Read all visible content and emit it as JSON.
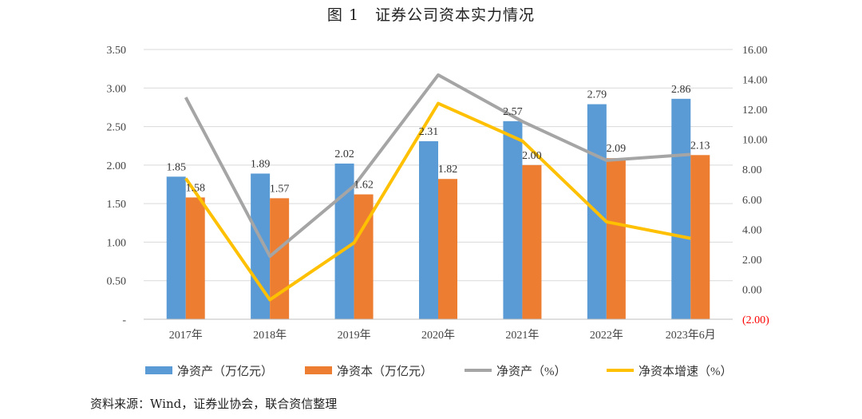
{
  "title": "图 1　证券公司资本实力情况",
  "source": "资料来源：Wind，证券业协会，联合资信整理",
  "colors": {
    "net_assets_bar": "#5B9BD5",
    "net_capital_bar": "#ED7D31",
    "net_assets_growth_line": "#A5A5A5",
    "net_capital_growth_line": "#FFC000",
    "negative_tick": "#FF0000"
  },
  "chart_data": {
    "type": "bar",
    "categories": [
      "2017年",
      "2018年",
      "2019年",
      "2020年",
      "2021年",
      "2022年",
      "2023年6月"
    ],
    "y_left": {
      "ylim": [
        0,
        3.5
      ],
      "ticks": [
        "-",
        "0.50",
        "1.00",
        "1.50",
        "2.00",
        "2.50",
        "3.00",
        "3.50"
      ]
    },
    "y_right": {
      "ylim": [
        -2,
        16
      ],
      "ticks": [
        "(2.00)",
        "0.00",
        "2.00",
        "4.00",
        "6.00",
        "8.00",
        "10.00",
        "12.00",
        "14.00",
        "16.00"
      ]
    },
    "series": [
      {
        "name": "净资产（万亿元）",
        "type": "bar",
        "axis": "left",
        "values": [
          1.85,
          1.89,
          2.02,
          2.31,
          2.57,
          2.79,
          2.86
        ],
        "labels": [
          "1.85",
          "1.89",
          "2.02",
          "2.31",
          "2.57",
          "2.79",
          "2.86"
        ]
      },
      {
        "name": "净资本（万亿元）",
        "type": "bar",
        "axis": "left",
        "values": [
          1.58,
          1.57,
          1.62,
          1.82,
          2.0,
          2.09,
          2.13
        ],
        "labels": [
          "1.58",
          "1.57",
          "1.62",
          "1.82",
          "2.00",
          "2.09",
          "2.13"
        ]
      },
      {
        "name": "净资产（%）",
        "type": "line",
        "axis": "right",
        "values": [
          12.8,
          2.2,
          6.9,
          14.3,
          11.2,
          8.6,
          9.0
        ]
      },
      {
        "name": "净资本增速（%）",
        "type": "line",
        "axis": "right",
        "values": [
          7.4,
          -0.7,
          3.1,
          12.4,
          9.9,
          4.5,
          3.4
        ]
      }
    ],
    "legend_position": "bottom",
    "grid": true
  }
}
